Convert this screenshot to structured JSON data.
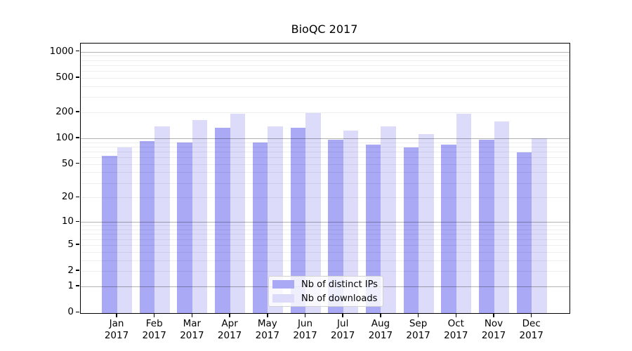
{
  "chart_data": {
    "type": "bar",
    "title": "BioQC 2017",
    "categories": [
      "Jan",
      "Feb",
      "Mar",
      "Apr",
      "May",
      "Jun",
      "Jul",
      "Aug",
      "Sep",
      "Oct",
      "Nov",
      "Dec"
    ],
    "category_year": "2017",
    "series": [
      {
        "name": "Nb of distinct IPs",
        "color": "#a9a9f6",
        "values": [
          63,
          93,
          89,
          133,
          90,
          133,
          97,
          84,
          79,
          84,
          96,
          68
        ]
      },
      {
        "name": "Nb of downloads",
        "color": "#dcdcfa",
        "values": [
          78,
          138,
          164,
          194,
          138,
          196,
          123,
          138,
          112,
          193,
          156,
          100
        ]
      }
    ],
    "xlabel": "",
    "ylabel": "",
    "yscale": "log1p",
    "yticks": [
      0,
      1,
      2,
      5,
      10,
      20,
      50,
      100,
      200,
      500,
      1000
    ],
    "ylim": [
      0,
      1200
    ],
    "grid": true,
    "legend_position": "lower-center"
  },
  "colors": {
    "bar_ips": "#a9a9f6",
    "bar_downloads": "#dcdcfa",
    "grid_major": "#b3b3b3",
    "grid_minor": "#ececec",
    "axis": "#000000",
    "background": "#ffffff"
  }
}
